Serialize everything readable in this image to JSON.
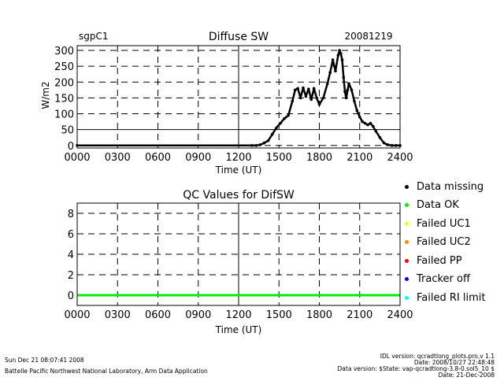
{
  "chart_data": [
    {
      "type": "line",
      "title": "Diffuse SW",
      "site": "sgpC1",
      "date": "20081219",
      "xlabel": "Time (UT)",
      "ylabel": "W/m2",
      "xlim": [
        0,
        2400
      ],
      "ylim": [
        -8,
        315
      ],
      "xticks": [
        "0000",
        "0300",
        "0600",
        "0900",
        "1200",
        "1500",
        "1800",
        "2100",
        "2400"
      ],
      "yticks": [
        "0",
        "50",
        "100",
        "150",
        "200",
        "250",
        "300"
      ],
      "grid": true,
      "series": [
        {
          "color": "#000000",
          "x": [
            0,
            1300,
            1330,
            1360,
            1390,
            1420,
            1450,
            1480,
            1510,
            1540,
            1570,
            1600,
            1620,
            1640,
            1660,
            1680,
            1700,
            1720,
            1740,
            1760,
            1780,
            1800,
            1830,
            1860,
            1880,
            1900,
            1920,
            1940,
            1950,
            1960,
            1970,
            1980,
            1990,
            2000,
            2010,
            2020,
            2040,
            2060,
            2080,
            2100,
            2120,
            2140,
            2160,
            2180,
            2200,
            2220,
            2250,
            2280,
            2310,
            2340,
            2370,
            2400
          ],
          "y": [
            0,
            0,
            0,
            2,
            8,
            15,
            35,
            55,
            70,
            85,
            95,
            140,
            175,
            180,
            150,
            182,
            155,
            178,
            145,
            180,
            150,
            130,
            150,
            195,
            230,
            270,
            235,
            285,
            300,
            290,
            270,
            215,
            170,
            150,
            175,
            195,
            175,
            140,
            110,
            90,
            75,
            70,
            65,
            70,
            60,
            45,
            25,
            8,
            2,
            0,
            0,
            0
          ]
        }
      ]
    },
    {
      "type": "line",
      "title": "QC Values for DifSW",
      "xlabel": "Time (UT)",
      "ylabel": "",
      "xlim": [
        0,
        2400
      ],
      "ylim": [
        -1,
        9
      ],
      "xticks": [
        "0000",
        "0300",
        "0600",
        "0900",
        "1200",
        "1500",
        "1800",
        "2100",
        "2400"
      ],
      "yticks": [
        "0",
        "2",
        "4",
        "6",
        "8"
      ],
      "grid": true,
      "series": [
        {
          "color": "#00ee00",
          "x": [
            0,
            2400
          ],
          "y": [
            0,
            0
          ]
        }
      ]
    }
  ],
  "legend": [
    {
      "label": "Data missing",
      "color": "#000000"
    },
    {
      "label": "Data OK",
      "color": "#00ee00"
    },
    {
      "label": "Failed UC1",
      "color": "#ffff00"
    },
    {
      "label": "Failed UC2",
      "color": "#ff8c00"
    },
    {
      "label": "Failed PP",
      "color": "#ff0000"
    },
    {
      "label": "Tracker off",
      "color": "#0000ff"
    },
    {
      "label": "Failed RI limit",
      "color": "#00ffff"
    }
  ],
  "footer": {
    "timestamp": "Sun Dec 21 08:07:41 2008",
    "lab": "Battelle Pacific Northwest National Laboratory, Arm Data Application",
    "idl_version": "IDL version: qcradtlong_plots.pro,v 1.1",
    "version_date": "Date: 2008/10/27 22:48:48",
    "data_version": "Data version: $State: vap-qcradtlong-3.8-0.sol5_10 $",
    "data_date": "Date: 21-Dec-2008"
  }
}
